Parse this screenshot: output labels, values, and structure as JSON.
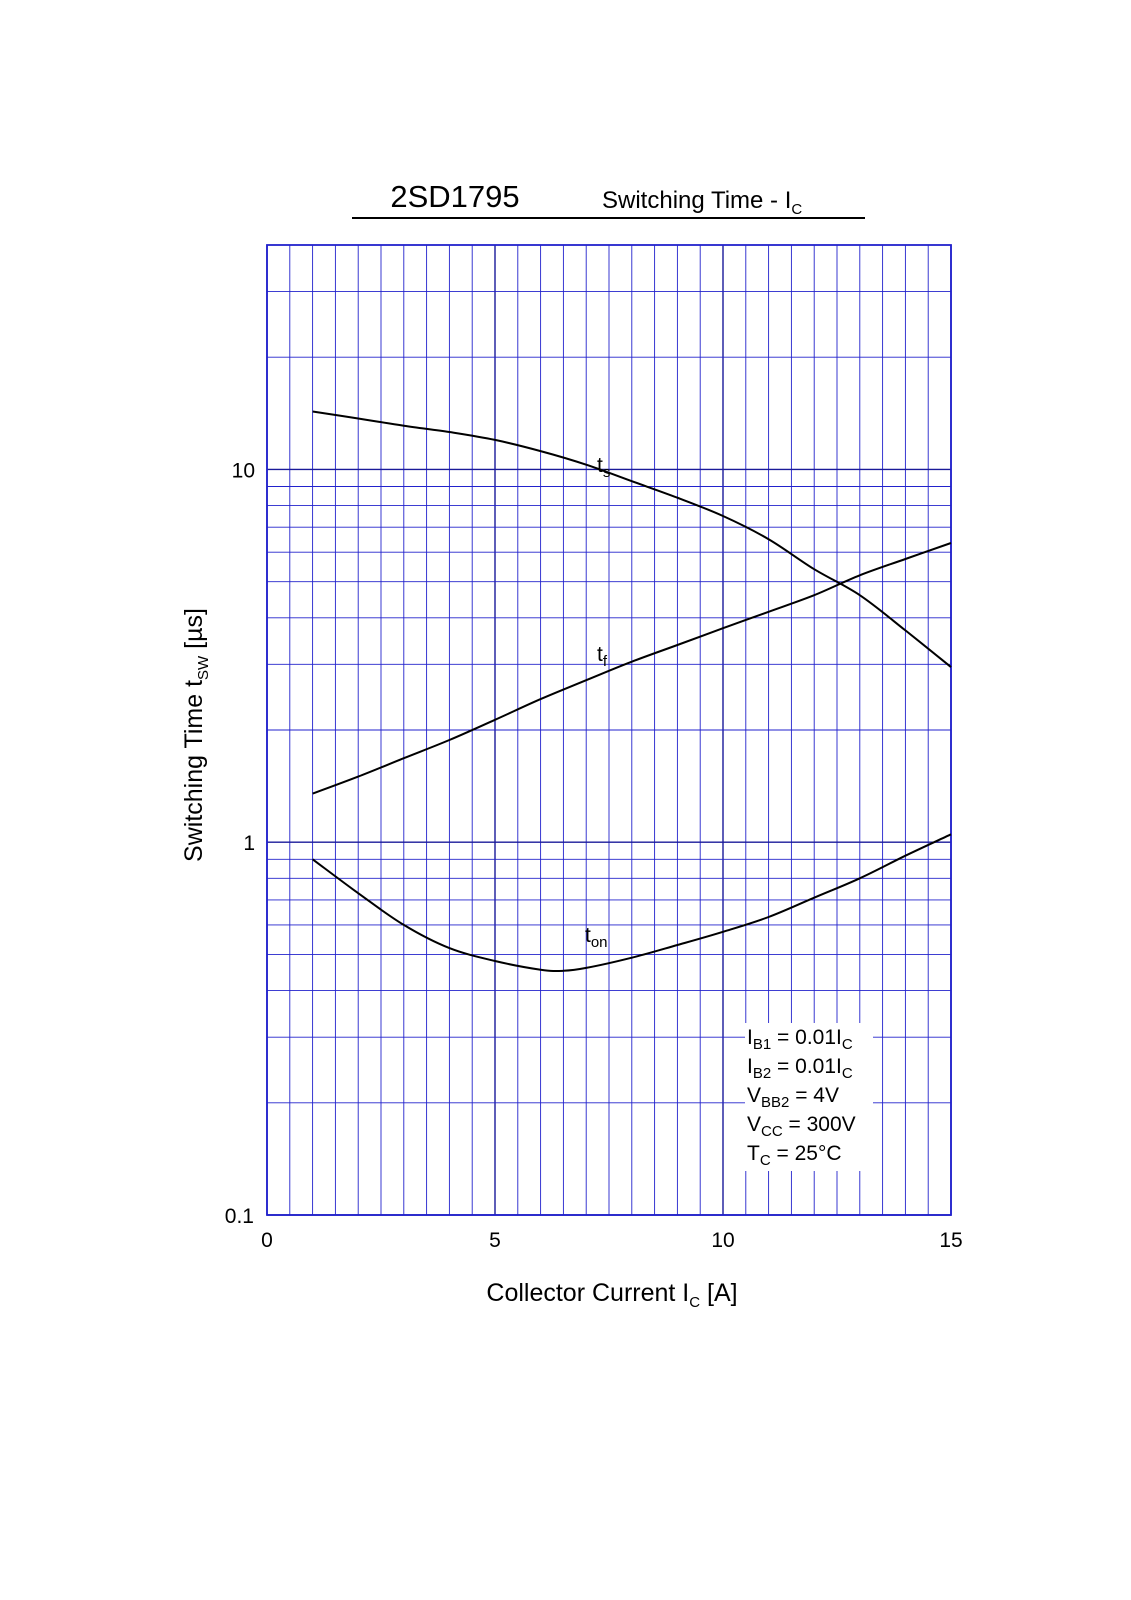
{
  "chart_data": {
    "type": "line",
    "title": "2SD1795",
    "subtitle": {
      "text": "Switching Time - I",
      "sub": "C"
    },
    "xlabel": {
      "text": "Collector Current  I",
      "sub": "C",
      "suffix": "  [A]"
    },
    "ylabel": {
      "text": "Switching Time  t",
      "sub": "SW",
      "suffix": "  [µs]"
    },
    "xlim": [
      0,
      15
    ],
    "ylim": [
      0.1,
      40
    ],
    "yscale": "log",
    "grid": true,
    "x_ticks": [
      "0",
      "5",
      "10",
      "15"
    ],
    "y_ticks": [
      "0.1",
      "1",
      "10"
    ],
    "series": [
      {
        "name": "ts",
        "label": {
          "main": "t",
          "sub": "s"
        },
        "x": [
          1,
          2,
          3,
          4,
          5,
          6,
          7,
          8,
          9,
          10,
          11,
          12,
          13,
          14,
          15
        ],
        "y": [
          14.3,
          13.7,
          13.1,
          12.6,
          12.0,
          11.2,
          10.3,
          9.3,
          8.4,
          7.5,
          6.5,
          5.4,
          4.6,
          3.7,
          2.95
        ]
      },
      {
        "name": "tf",
        "label": {
          "main": "t",
          "sub": "f"
        },
        "x": [
          1,
          2,
          3,
          4,
          5,
          6,
          7,
          8,
          9,
          10,
          11,
          12,
          13,
          14,
          15
        ],
        "y": [
          1.35,
          1.5,
          1.68,
          1.88,
          2.13,
          2.42,
          2.72,
          3.05,
          3.38,
          3.75,
          4.15,
          4.6,
          5.2,
          5.75,
          6.35
        ]
      },
      {
        "name": "ton",
        "label": {
          "main": "t",
          "sub": "on"
        },
        "x": [
          1,
          2,
          3,
          4,
          5,
          6,
          6.5,
          7,
          8,
          9,
          10,
          11,
          12,
          13,
          14,
          15
        ],
        "y": [
          0.9,
          0.73,
          0.6,
          0.52,
          0.48,
          0.455,
          0.452,
          0.46,
          0.49,
          0.53,
          0.575,
          0.63,
          0.71,
          0.8,
          0.92,
          1.05
        ]
      }
    ],
    "conditions": [
      {
        "parts": [
          [
            "I",
            ""
          ],
          [
            "B1",
            "sub"
          ],
          [
            " = 0.01I",
            ""
          ],
          [
            "C",
            "sub"
          ]
        ]
      },
      {
        "parts": [
          [
            "I",
            ""
          ],
          [
            "B2",
            "sub"
          ],
          [
            " = 0.01I",
            ""
          ],
          [
            "C",
            "sub"
          ]
        ]
      },
      {
        "parts": [
          [
            "V",
            ""
          ],
          [
            "BB2",
            "sub"
          ],
          [
            " = 4V",
            ""
          ]
        ]
      },
      {
        "parts": [
          [
            "V",
            ""
          ],
          [
            "CC",
            "sub"
          ],
          [
            " = 300V",
            ""
          ]
        ]
      },
      {
        "parts": [
          [
            "T",
            ""
          ],
          [
            "C",
            "sub"
          ],
          [
            " = 25°C",
            ""
          ]
        ]
      }
    ],
    "colors": {
      "grid": "#2222cc",
      "curve": "#000000",
      "frame": "#2222cc"
    }
  }
}
